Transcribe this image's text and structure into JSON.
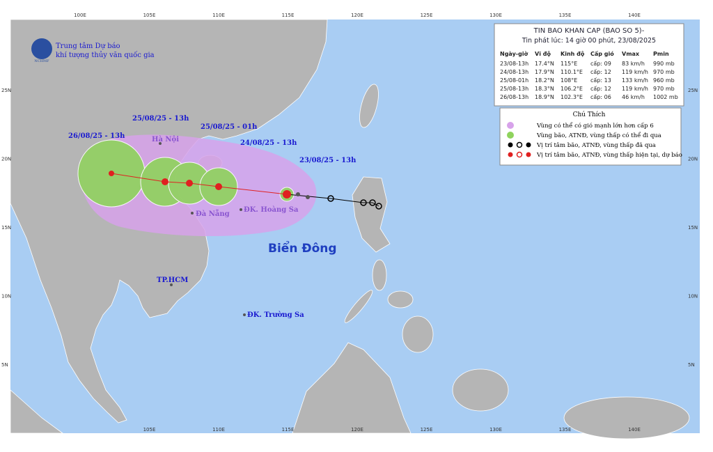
{
  "header": {
    "org_line1": "Trung tâm Dự báo",
    "org_line2": "khí tượng thủy văn quốc gia",
    "logo": "NCHMF"
  },
  "grid": {
    "lon_top": [
      "100E",
      "105E",
      "110E",
      "115E",
      "120E",
      "125E",
      "130E",
      "135E",
      "140E"
    ],
    "lon_bottom": [
      "105E",
      "110E",
      "115E",
      "120E",
      "125E",
      "130E",
      "135E",
      "140E"
    ],
    "lat_left": [
      "25N",
      "20N",
      "15N",
      "10N",
      "5N"
    ],
    "lat_right": [
      "25N",
      "20N",
      "15N",
      "10N",
      "5N"
    ]
  },
  "info": {
    "title": "TIN BAO KHAN CAP (BAO SO 5)-",
    "issued": "Tin phát lúc: 14 giờ 00 phút, 23/08/2025",
    "columns": [
      "Ngày-giờ",
      "Vĩ độ",
      "Kinh độ",
      "Cấp gió",
      "Vmax",
      "Pmin"
    ],
    "rows": [
      [
        "23/08-13h",
        "17.4°N",
        "115°E",
        "cấp: 09",
        "83 km/h",
        "990 mb"
      ],
      [
        "24/08-13h",
        "17.9°N",
        "110.1°E",
        "cấp: 12",
        "119 km/h",
        "970 mb"
      ],
      [
        "25/08-01h",
        "18.2°N",
        "108°E",
        "cấp: 13",
        "133 km/h",
        "960 mb"
      ],
      [
        "25/08-13h",
        "18.3°N",
        "106.2°E",
        "cấp: 12",
        "119 km/h",
        "970 mb"
      ],
      [
        "26/08-13h",
        "18.9°N",
        "102.3°E",
        "cấp: 06",
        "46 km/h",
        "1002 mb"
      ]
    ]
  },
  "legend": {
    "title": "Chú Thích",
    "items": [
      "Vùng có thể có gió mạnh lớn hơn cấp 6",
      "Vùng bão, ATNĐ, vùng thấp có thể đi qua",
      "Vị trí tâm bão, ATNĐ, vùng thấp đã qua",
      "Vị trí tâm bão, ATNĐ, vùng thấp hiện tại, dự báo"
    ]
  },
  "places": {
    "sea": "Biển Đông",
    "hanoi": "Hà Nội",
    "danang": "Đà Nẵng",
    "hoangsa": "ĐK. Hoàng Sa",
    "hcm": "TP.HCM",
    "truongsa": "ĐK. Trường Sa"
  },
  "forecast_labels": [
    "26/08/25 - 13h",
    "25/08/25 - 13h",
    "25/08/25 - 01h",
    "24/08/25 - 13h",
    "23/08/25 - 13h"
  ]
}
